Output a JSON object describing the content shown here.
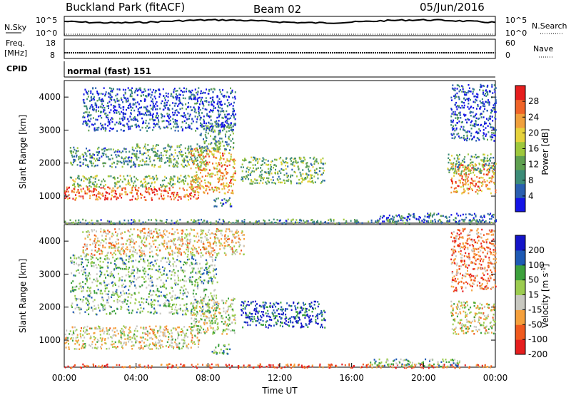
{
  "header": {
    "station": "Buckland Park (fitACF)",
    "beam": "Beam 02",
    "date": "05/Jun/2016"
  },
  "strip_labels": {
    "nsky": "N.Sky",
    "nsky_ticks": [
      "10^5",
      "10^0"
    ],
    "nsearch": "N.Search",
    "freq_line1": "Freq.",
    "freq_line2": "[MHz]",
    "freq_ticks": [
      "18",
      "8"
    ],
    "nave": "Nave",
    "nave_ticks": [
      "60",
      "0"
    ],
    "cpid": "CPID",
    "cpid_text": "normal (fast) 151"
  },
  "colors": {
    "power": [
      "#1414e6",
      "#2a5fb0",
      "#3c8c78",
      "#5fa050",
      "#9ec83c",
      "#e6d23c",
      "#f0a03c",
      "#f06428",
      "#e61e1e"
    ],
    "velocity": [
      "#e61e1e",
      "#f05a1e",
      "#f5a03c",
      "#c8c8c0",
      "#9ccc50",
      "#3ca03c",
      "#1e5ab4",
      "#1414c8"
    ]
  },
  "chart_data": [
    {
      "type": "heatmap",
      "name": "power",
      "xlabel": "",
      "ylabel": "Slant Range [km]",
      "ylim": [
        180,
        4500
      ],
      "yticks": [
        "4000",
        "3000",
        "2000",
        "1000"
      ],
      "ytick_values": [
        4000,
        3000,
        2000,
        1000
      ],
      "xlim": [
        0,
        24
      ],
      "colorbar_label": "Power [dB]",
      "colorbar_ticks": [
        "28",
        "24",
        "20",
        "16",
        "12",
        "8",
        "4"
      ],
      "colorbar_values": [
        28,
        24,
        20,
        16,
        12,
        8,
        4
      ],
      "colorbar_range": [
        0,
        32
      ],
      "bands": [
        {
          "t0": 0.0,
          "t1": 7.6,
          "r0": 900,
          "r1": 1300,
          "level": 0.85
        },
        {
          "t0": 0.3,
          "t1": 7.5,
          "r0": 1300,
          "r1": 1650,
          "level": 0.45
        },
        {
          "t0": 0.3,
          "t1": 4.0,
          "r0": 1900,
          "r1": 2500,
          "level": 0.3
        },
        {
          "t0": 3.8,
          "t1": 8.0,
          "r0": 1900,
          "r1": 2600,
          "level": 0.4
        },
        {
          "t0": 7.0,
          "t1": 9.5,
          "r0": 1100,
          "r1": 2500,
          "level": 0.7
        },
        {
          "t0": 7.5,
          "t1": 9.4,
          "r0": 2400,
          "r1": 3200,
          "level": 0.35
        },
        {
          "t0": 1.0,
          "t1": 9.5,
          "r0": 3000,
          "r1": 4300,
          "level": 0.15
        },
        {
          "t0": 8.3,
          "t1": 9.3,
          "r0": 700,
          "r1": 1000,
          "level": 0.25
        },
        {
          "t0": 9.8,
          "t1": 14.5,
          "r0": 1400,
          "r1": 2200,
          "level": 0.4
        },
        {
          "t0": 0.0,
          "t1": 24.0,
          "r0": 180,
          "r1": 320,
          "level": 0.3
        },
        {
          "t0": 17.5,
          "t1": 24.0,
          "r0": 250,
          "r1": 500,
          "level": 0.2
        },
        {
          "t0": 21.5,
          "t1": 24.0,
          "r0": 1100,
          "r1": 2000,
          "level": 0.75
        },
        {
          "t0": 21.3,
          "t1": 24.0,
          "r0": 1700,
          "r1": 2300,
          "level": 0.4
        },
        {
          "t0": 21.5,
          "t1": 24.0,
          "r0": 2700,
          "r1": 4400,
          "level": 0.15
        }
      ]
    },
    {
      "type": "heatmap",
      "name": "velocity",
      "xlabel": "Time UT",
      "ylabel": "Slant Range [km]",
      "ylim": [
        180,
        4500
      ],
      "yticks": [
        "4000",
        "3000",
        "2000",
        "1000"
      ],
      "ytick_values": [
        4000,
        3000,
        2000,
        1000
      ],
      "xlim": [
        0,
        24
      ],
      "xticks": [
        "00:00",
        "04:00",
        "08:00",
        "12:00",
        "16:00",
        "20:00",
        "00:00"
      ],
      "xtick_values": [
        0,
        4,
        8,
        12,
        16,
        20,
        24
      ],
      "colorbar_label": "Velocity [m s-1]",
      "colorbar_ticks": [
        "200",
        "100",
        "50",
        "15",
        "-15",
        "-50",
        "-100",
        "-200"
      ],
      "bands": [
        {
          "t0": 0.0,
          "t1": 7.5,
          "r0": 750,
          "r1": 1450,
          "level": 0.45
        },
        {
          "t0": 7.0,
          "t1": 9.5,
          "r0": 1200,
          "r1": 2300,
          "level": 0.5
        },
        {
          "t0": 0.3,
          "t1": 8.5,
          "r0": 1800,
          "r1": 3600,
          "level": 0.6
        },
        {
          "t0": 8.2,
          "t1": 9.2,
          "r0": 600,
          "r1": 900,
          "level": 0.65
        },
        {
          "t0": 9.8,
          "t1": 14.5,
          "r0": 1400,
          "r1": 2200,
          "level": 0.85
        },
        {
          "t0": 0.0,
          "t1": 24.0,
          "r0": 180,
          "r1": 300,
          "level": 0.15
        },
        {
          "t0": 17.0,
          "t1": 22.0,
          "r0": 220,
          "r1": 450,
          "level": 0.62
        },
        {
          "t0": 21.5,
          "t1": 24.0,
          "r0": 1200,
          "r1": 2200,
          "level": 0.45
        },
        {
          "t0": 21.5,
          "t1": 24.0,
          "r0": 2500,
          "r1": 4400,
          "level": 0.25
        },
        {
          "t0": 1.0,
          "t1": 10.0,
          "r0": 3600,
          "r1": 4400,
          "level": 0.4
        }
      ]
    }
  ]
}
